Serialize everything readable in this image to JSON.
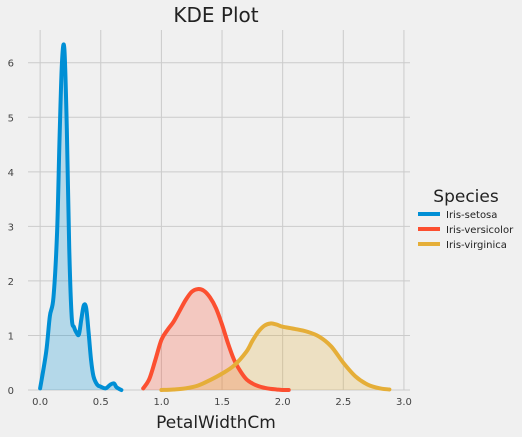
{
  "chart_data": {
    "type": "area",
    "title": "KDE Plot",
    "xlabel": "PetalWidthCm",
    "ylabel": "",
    "xlim": [
      -0.1,
      3.05
    ],
    "ylim": [
      0,
      6.6
    ],
    "x_ticks": [
      "0.0",
      "0.5",
      "1.0",
      "1.5",
      "2.0",
      "2.5",
      "3.0"
    ],
    "y_ticks": [
      "0",
      "1",
      "2",
      "3",
      "4",
      "5",
      "6"
    ],
    "grid": true,
    "legend": {
      "title": "Species",
      "placement": "right"
    },
    "series": [
      {
        "name": "Iris-setosa",
        "color": "#008fd5",
        "x": [
          0.0,
          0.05,
          0.08,
          0.11,
          0.14,
          0.16,
          0.18,
          0.2,
          0.22,
          0.24,
          0.26,
          0.28,
          0.3,
          0.32,
          0.34,
          0.36,
          0.38,
          0.4,
          0.42,
          0.44,
          0.47,
          0.5,
          0.54,
          0.58,
          0.61,
          0.63,
          0.67
        ],
        "y": [
          0.03,
          0.7,
          1.35,
          1.7,
          2.9,
          4.6,
          6.0,
          6.25,
          4.8,
          2.6,
          1.35,
          1.15,
          1.05,
          1.02,
          1.3,
          1.55,
          1.5,
          1.05,
          0.55,
          0.25,
          0.1,
          0.06,
          0.03,
          0.1,
          0.12,
          0.05,
          0.0
        ]
      },
      {
        "name": "Iris-versicolor",
        "color": "#fc4f30",
        "x": [
          0.85,
          0.9,
          0.95,
          1.0,
          1.05,
          1.1,
          1.15,
          1.2,
          1.25,
          1.3,
          1.35,
          1.4,
          1.45,
          1.5,
          1.55,
          1.6,
          1.65,
          1.7,
          1.75,
          1.8,
          1.85,
          1.9,
          1.95,
          2.0,
          2.05
        ],
        "y": [
          0.03,
          0.2,
          0.55,
          0.92,
          1.1,
          1.25,
          1.45,
          1.65,
          1.8,
          1.85,
          1.82,
          1.7,
          1.5,
          1.2,
          0.85,
          0.55,
          0.35,
          0.2,
          0.12,
          0.07,
          0.04,
          0.02,
          0.01,
          0.0,
          0.0
        ]
      },
      {
        "name": "Iris-virginica",
        "color": "#e5ae38",
        "x": [
          1.0,
          1.1,
          1.2,
          1.3,
          1.4,
          1.5,
          1.6,
          1.7,
          1.75,
          1.8,
          1.85,
          1.9,
          1.95,
          2.0,
          2.1,
          2.2,
          2.3,
          2.4,
          2.5,
          2.6,
          2.7,
          2.8,
          2.88
        ],
        "y": [
          0.0,
          0.01,
          0.03,
          0.08,
          0.18,
          0.3,
          0.45,
          0.7,
          0.9,
          1.07,
          1.18,
          1.22,
          1.2,
          1.16,
          1.12,
          1.07,
          0.98,
          0.8,
          0.5,
          0.25,
          0.1,
          0.03,
          0.01
        ]
      }
    ]
  }
}
